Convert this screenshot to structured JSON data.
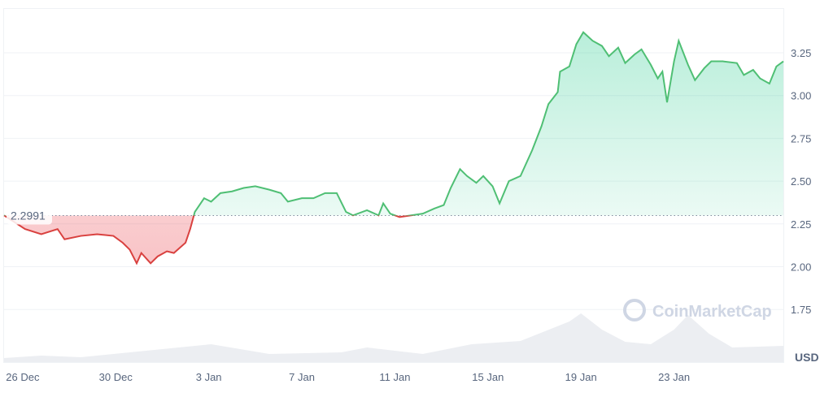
{
  "chart_data": {
    "type": "line",
    "title": "",
    "currency_label": "USD",
    "watermark": "CoinMarketCap",
    "reference_price": 2.2991,
    "reference_label": "2.2991",
    "ylim": [
      1.55,
      3.45
    ],
    "yticks": [
      {
        "v": 1.75,
        "label": "1.75"
      },
      {
        "v": 2.0,
        "label": "2.00"
      },
      {
        "v": 2.25,
        "label": "2.25"
      },
      {
        "v": 2.5,
        "label": "2.50"
      },
      {
        "v": 2.75,
        "label": "2.75"
      },
      {
        "v": 3.0,
        "label": "3.00"
      },
      {
        "v": 3.25,
        "label": "3.25"
      }
    ],
    "xlim_days_from_26_dec": [
      -0.8,
      32.7
    ],
    "xticks": [
      {
        "d": 0,
        "label": "26 Dec"
      },
      {
        "d": 4,
        "label": "30 Dec"
      },
      {
        "d": 8,
        "label": "3 Jan"
      },
      {
        "d": 12,
        "label": "7 Jan"
      },
      {
        "d": 16,
        "label": "11 Jan"
      },
      {
        "d": 20,
        "label": "15 Jan"
      },
      {
        "d": 24,
        "label": "19 Jan"
      },
      {
        "d": 28,
        "label": "23 Jan"
      }
    ],
    "colors": {
      "up": "#16c784",
      "up_line": "#4fbf74",
      "down": "#ea3943",
      "down_line": "#d9413f"
    },
    "price": [
      [
        -0.8,
        2.3
      ],
      [
        0.1,
        2.22
      ],
      [
        0.8,
        2.19
      ],
      [
        1.5,
        2.22
      ],
      [
        1.8,
        2.16
      ],
      [
        2.5,
        2.18
      ],
      [
        3.2,
        2.19
      ],
      [
        3.9,
        2.18
      ],
      [
        4.3,
        2.14
      ],
      [
        4.6,
        2.1
      ],
      [
        4.9,
        2.02
      ],
      [
        5.1,
        2.08
      ],
      [
        5.5,
        2.02
      ],
      [
        5.8,
        2.06
      ],
      [
        6.2,
        2.09
      ],
      [
        6.5,
        2.08
      ],
      [
        7.0,
        2.14
      ],
      [
        7.2,
        2.22
      ],
      [
        7.4,
        2.32
      ],
      [
        7.8,
        2.4
      ],
      [
        8.1,
        2.38
      ],
      [
        8.5,
        2.43
      ],
      [
        9.0,
        2.44
      ],
      [
        9.5,
        2.46
      ],
      [
        10.0,
        2.47
      ],
      [
        10.6,
        2.45
      ],
      [
        11.1,
        2.43
      ],
      [
        11.4,
        2.38
      ],
      [
        12.0,
        2.4
      ],
      [
        12.5,
        2.4
      ],
      [
        13.0,
        2.43
      ],
      [
        13.5,
        2.43
      ],
      [
        13.9,
        2.32
      ],
      [
        14.2,
        2.3
      ],
      [
        14.8,
        2.33
      ],
      [
        15.3,
        2.3
      ],
      [
        15.5,
        2.37
      ],
      [
        15.8,
        2.31
      ],
      [
        16.2,
        2.29
      ],
      [
        16.7,
        2.3
      ],
      [
        17.2,
        2.31
      ],
      [
        17.7,
        2.34
      ],
      [
        18.1,
        2.36
      ],
      [
        18.4,
        2.46
      ],
      [
        18.8,
        2.57
      ],
      [
        19.1,
        2.53
      ],
      [
        19.5,
        2.49
      ],
      [
        19.8,
        2.53
      ],
      [
        20.2,
        2.47
      ],
      [
        20.5,
        2.37
      ],
      [
        20.9,
        2.5
      ],
      [
        21.4,
        2.53
      ],
      [
        21.9,
        2.68
      ],
      [
        22.3,
        2.82
      ],
      [
        22.6,
        2.95
      ],
      [
        23.0,
        3.02
      ],
      [
        23.1,
        3.14
      ],
      [
        23.5,
        3.17
      ],
      [
        23.8,
        3.3
      ],
      [
        24.1,
        3.37
      ],
      [
        24.5,
        3.32
      ],
      [
        24.9,
        3.29
      ],
      [
        25.2,
        3.23
      ],
      [
        25.6,
        3.28
      ],
      [
        25.9,
        3.19
      ],
      [
        26.3,
        3.24
      ],
      [
        26.6,
        3.27
      ],
      [
        27.0,
        3.18
      ],
      [
        27.3,
        3.1
      ],
      [
        27.5,
        3.14
      ],
      [
        27.7,
        2.96
      ],
      [
        28.0,
        3.2
      ],
      [
        28.2,
        3.32
      ],
      [
        28.6,
        3.18
      ],
      [
        28.9,
        3.09
      ],
      [
        29.3,
        3.16
      ],
      [
        29.6,
        3.2
      ],
      [
        30.1,
        3.2
      ],
      [
        30.7,
        3.19
      ],
      [
        31.0,
        3.12
      ],
      [
        31.4,
        3.15
      ],
      [
        31.7,
        3.1
      ],
      [
        32.1,
        3.07
      ],
      [
        32.4,
        3.17
      ],
      [
        32.7,
        3.2
      ]
    ],
    "volume_relative": [
      [
        -0.8,
        5
      ],
      [
        0.8,
        8
      ],
      [
        2.5,
        6
      ],
      [
        5.3,
        14
      ],
      [
        8.1,
        22
      ],
      [
        10.6,
        10
      ],
      [
        13.7,
        12
      ],
      [
        14.8,
        18
      ],
      [
        17.2,
        10
      ],
      [
        19.3,
        22
      ],
      [
        21.4,
        26
      ],
      [
        23.5,
        50
      ],
      [
        24.0,
        60
      ],
      [
        24.9,
        40
      ],
      [
        25.9,
        25
      ],
      [
        27.0,
        22
      ],
      [
        28.0,
        40
      ],
      [
        28.6,
        58
      ],
      [
        29.5,
        35
      ],
      [
        30.5,
        18
      ],
      [
        32.7,
        20
      ]
    ]
  }
}
